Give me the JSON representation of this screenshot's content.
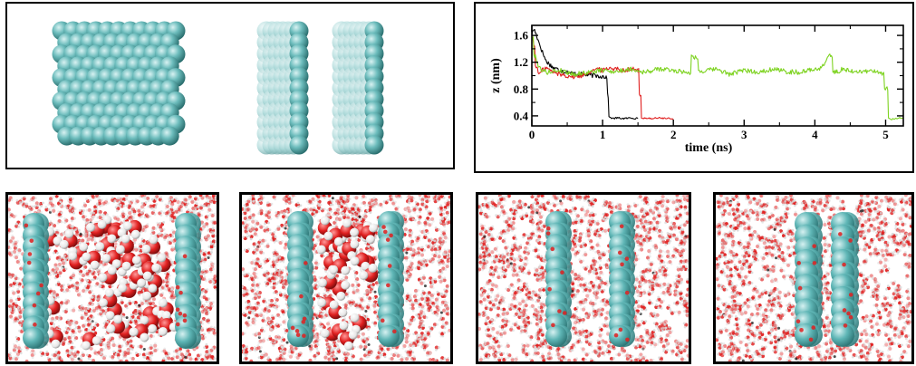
{
  "colors": {
    "carbon": "#5fb6b6",
    "carbon_dark": "#2e7777",
    "carbon_light": "#bfe6e6",
    "oxygen": "#e02020",
    "hydrogen": "#f2f2f2"
  },
  "chart_data": {
    "type": "line",
    "xlabel": "time (ns)",
    "ylabel": "z (nm)",
    "xlim": [
      0,
      5.25
    ],
    "ylim": [
      0.25,
      1.75
    ],
    "xticks": [
      0,
      1,
      2,
      3,
      4,
      5
    ],
    "yticks": [
      0.4,
      0.8,
      1.2,
      1.6
    ],
    "grid": false,
    "series": [
      {
        "color": "#000000",
        "x": [
          0,
          0.03,
          0.06,
          0.1,
          0.15,
          0.2,
          0.3,
          0.4,
          0.5,
          0.6,
          0.7,
          0.8,
          0.9,
          1.0,
          1.05,
          1.08,
          1.1,
          1.15,
          1.2,
          1.3,
          1.4,
          1.5
        ],
        "y": [
          1.62,
          1.7,
          1.62,
          1.5,
          1.35,
          1.22,
          1.12,
          1.08,
          1.05,
          1.03,
          1.02,
          1.01,
          1.0,
          0.99,
          0.98,
          0.7,
          0.38,
          0.36,
          0.37,
          0.36,
          0.37,
          0.36
        ]
      },
      {
        "color": "#e02020",
        "x": [
          0,
          0.03,
          0.06,
          0.1,
          0.15,
          0.2,
          0.3,
          0.4,
          0.5,
          0.6,
          0.7,
          0.8,
          0.9,
          1.0,
          1.1,
          1.2,
          1.3,
          1.4,
          1.5,
          1.53,
          1.56,
          1.6,
          1.7,
          1.8,
          1.9,
          2.0
        ],
        "y": [
          1.6,
          1.45,
          1.15,
          1.02,
          1.08,
          1.12,
          1.05,
          1.02,
          1.0,
          0.98,
          1.0,
          1.05,
          1.1,
          1.08,
          1.12,
          1.1,
          1.08,
          1.1,
          1.08,
          0.7,
          0.36,
          0.37,
          0.36,
          0.37,
          0.36,
          0.36
        ]
      },
      {
        "color": "#7ed321",
        "x": [
          0,
          0.05,
          0.1,
          0.2,
          0.4,
          0.6,
          0.8,
          1.0,
          1.2,
          1.4,
          1.6,
          1.8,
          2.0,
          2.2,
          2.3,
          2.4,
          2.6,
          2.8,
          3.0,
          3.2,
          3.4,
          3.6,
          3.8,
          4.0,
          4.1,
          4.2,
          4.3,
          4.4,
          4.6,
          4.8,
          4.95,
          5.02,
          5.05,
          5.1,
          5.2,
          5.25
        ],
        "y": [
          1.55,
          1.3,
          1.12,
          1.05,
          1.08,
          1.02,
          1.05,
          1.08,
          1.06,
          1.1,
          1.05,
          1.1,
          1.08,
          1.05,
          1.28,
          1.06,
          1.1,
          1.02,
          1.08,
          1.05,
          1.1,
          1.06,
          1.05,
          1.1,
          1.12,
          1.3,
          1.05,
          1.1,
          1.05,
          1.08,
          1.02,
          0.8,
          0.36,
          0.35,
          0.37,
          0.36
        ]
      }
    ]
  }
}
